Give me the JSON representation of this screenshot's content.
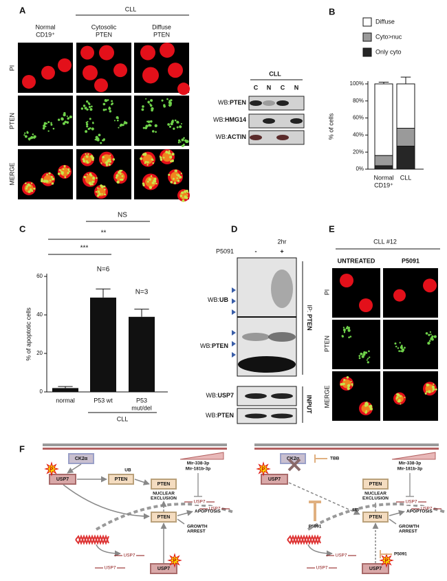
{
  "panel_a": {
    "label": "A",
    "group": "CLL",
    "columns": [
      [
        "Normal",
        "CD19⁺"
      ],
      [
        "Cytosolic",
        "PTEN"
      ],
      [
        "Diffuse",
        "PTEN"
      ]
    ],
    "rows": [
      "PI",
      "PTEN",
      "MERGE"
    ],
    "blot": {
      "group": "CLL",
      "lanes": [
        "C",
        "N",
        "C",
        "N"
      ],
      "rows": [
        [
          "WB:",
          "PTEN"
        ],
        [
          "WB:",
          "HMG14"
        ],
        [
          "WB:",
          "ACTIN"
        ]
      ]
    }
  },
  "chart_data": [
    {
      "type": "bar",
      "stacked": true,
      "panel": "B",
      "ylabel": "% of cells",
      "categories": [
        [
          "Normal",
          "CD19⁺"
        ],
        [
          "CLL"
        ]
      ],
      "series": [
        {
          "name": "Only cyto",
          "color": "#262626",
          "values": [
            4,
            27
          ],
          "errors": [
            2,
            8
          ]
        },
        {
          "name": "Cyto>nuc",
          "color": "#9a9a9a",
          "values": [
            12,
            21
          ],
          "errors": [
            2,
            4
          ]
        },
        {
          "name": "Diffuse",
          "color": "#ffffff",
          "values": [
            84,
            52
          ],
          "errors": [
            2,
            8
          ]
        }
      ],
      "ylim": [
        0,
        100
      ],
      "yticks": [
        {
          "value": 0,
          "label": "0%"
        },
        {
          "value": 20,
          "label": "20%"
        },
        {
          "value": 40,
          "label": "40%"
        },
        {
          "value": 60,
          "label": "60%"
        },
        {
          "value": 80,
          "label": "80%"
        },
        {
          "value": 100,
          "label": "100%"
        }
      ],
      "legend": "top"
    },
    {
      "type": "bar",
      "panel": "C",
      "ylabel": "% of apoptotic cells",
      "categories": [
        [
          "normal"
        ],
        [
          "P53 wt"
        ],
        [
          "P53",
          "mut/del"
        ]
      ],
      "values": [
        2,
        49,
        39
      ],
      "errors": [
        0.8,
        4.5,
        4
      ],
      "color": "#111111",
      "ylim": [
        0,
        60
      ],
      "yticks": [
        0,
        20,
        40,
        60
      ],
      "n_labels": [
        "N=6",
        "N=3"
      ],
      "significance": [
        "***",
        "**",
        "NS"
      ],
      "group": "CLL"
    }
  ],
  "panel_d": {
    "label": "D",
    "time": "2hr",
    "treatment": "P5091",
    "lanes": [
      "-",
      "+"
    ],
    "ip_rows": [
      [
        "WB:",
        "UB"
      ],
      [
        "WB:",
        "PTEN"
      ]
    ],
    "ip_label": [
      "IP: ",
      "PTEN"
    ],
    "input_rows": [
      [
        "WB:",
        "USP7"
      ],
      [
        "WB:",
        "PTEN"
      ]
    ],
    "input_label": "INPUT"
  },
  "panel_e": {
    "label": "E",
    "group": "CLL #12",
    "columns": [
      "UNTREATED",
      "P5091"
    ],
    "rows": [
      "PI",
      "PTEN",
      "MERGE"
    ]
  },
  "panel_f": {
    "label": "F",
    "left": {
      "ck2": "CK2α",
      "usp7": "USP7",
      "p": [
        "P",
        "P"
      ],
      "pten": [
        "PTEN",
        "PTEN",
        "PTEN"
      ],
      "ub": "UB",
      "nuclear_exclusion": [
        "NUCLEAR",
        "EXCLUSION"
      ],
      "apoptosis": "APOPTOSIS",
      "growth_arrest": [
        "GROWTH",
        "ARREST"
      ],
      "mirs": [
        "Mir-338-3p",
        "Mir-181b-3p"
      ],
      "usp7_mrna": [
        "USP7",
        "USP7",
        "USP7",
        "USP7"
      ],
      "usp7_bottom": "USP7"
    },
    "right": {
      "ck2": "CK2α",
      "tbb": "TBB",
      "usp7": "USP7",
      "p": [
        "P",
        "P"
      ],
      "pten": [
        "PTEN",
        "PTEN"
      ],
      "ub": "UB",
      "nuclear_exclusion": [
        "NUCLEAR",
        "EXCLUSION"
      ],
      "apoptosis": "APOPTOSIS",
      "growth_arrest": [
        "GROWTH",
        "ARREST"
      ],
      "mirs": [
        "Mir-338-3p",
        "Mir-181b-3p"
      ],
      "usp7_mrna": [
        "USP7",
        "USP7",
        "USP7",
        "USP7"
      ],
      "usp7_bottom": "USP7",
      "p5091": [
        "P5091",
        "P5091"
      ]
    }
  }
}
